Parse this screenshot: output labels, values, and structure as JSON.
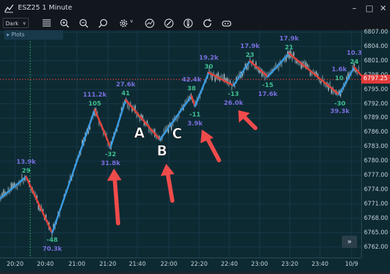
{
  "window": {
    "title": "ESZ25 1 Minute",
    "icon": "chart-app-icon",
    "controls": [
      "minimize-icon",
      "maximize-icon",
      "close-icon"
    ]
  },
  "toolbar": {
    "theme": "Dark",
    "buttons": [
      "menu-icon",
      "zoom-in-icon",
      "zoom-out-icon",
      "zoom-icon",
      "settings-icon",
      "indicator-icon",
      "draw-tool-icon",
      "thermometer-icon",
      "refresh-icon",
      "link-icon"
    ]
  },
  "plots_label": "Plots",
  "price_axis": [
    "6807.00",
    "6804.00",
    "6801.00",
    "6798.00",
    "6795.00",
    "6792.00",
    "6789.00",
    "6786.00",
    "6783.00",
    "6780.00",
    "6777.00",
    "6774.00",
    "6771.00",
    "6768.00",
    "6765.00",
    "6762.00"
  ],
  "current_price": "6797.25",
  "time_axis": [
    "20:20",
    "20:40",
    "21:00",
    "21:20",
    "21:40",
    "22:00",
    "22:20",
    "22:40",
    "23:00",
    "23:20",
    "23:40",
    "10/9"
  ],
  "colors": {
    "up_leg": "#3a9ae0",
    "down_leg": "#e0423a",
    "volume_label": "#7a6fe0",
    "delta_label": "#3fbf8f",
    "arrow": "#ef4b4b",
    "current_price": "#e23a3a"
  },
  "legs": [
    {
      "volume": "13.9k",
      "delta": "29"
    },
    {
      "delta": "-48",
      "volume": "70.3k"
    },
    {
      "volume": "111.2k",
      "delta": "105"
    },
    {
      "delta": "-32",
      "volume": "31.8k"
    },
    {
      "volume": "27.6k",
      "delta": "41"
    },
    {
      "volume": "42.4k",
      "delta": "38"
    },
    {
      "delta": "-11",
      "volume": "3.9k"
    },
    {
      "volume": "19.2k",
      "delta": "30"
    },
    {
      "delta": "-13",
      "volume": "26.0k"
    },
    {
      "volume": "17.9k",
      "delta": "23"
    },
    {
      "delta": "-15",
      "volume": "17.6k"
    },
    {
      "volume": "17.9k",
      "delta": "21"
    },
    {
      "volume": "1.6k",
      "delta": "10"
    },
    {
      "delta": "-30",
      "volume": "39.3k"
    },
    {
      "volume": "10.3",
      "delta": "24"
    }
  ],
  "annotations": [
    "A",
    "B",
    "C"
  ],
  "scroll_button": "»"
}
